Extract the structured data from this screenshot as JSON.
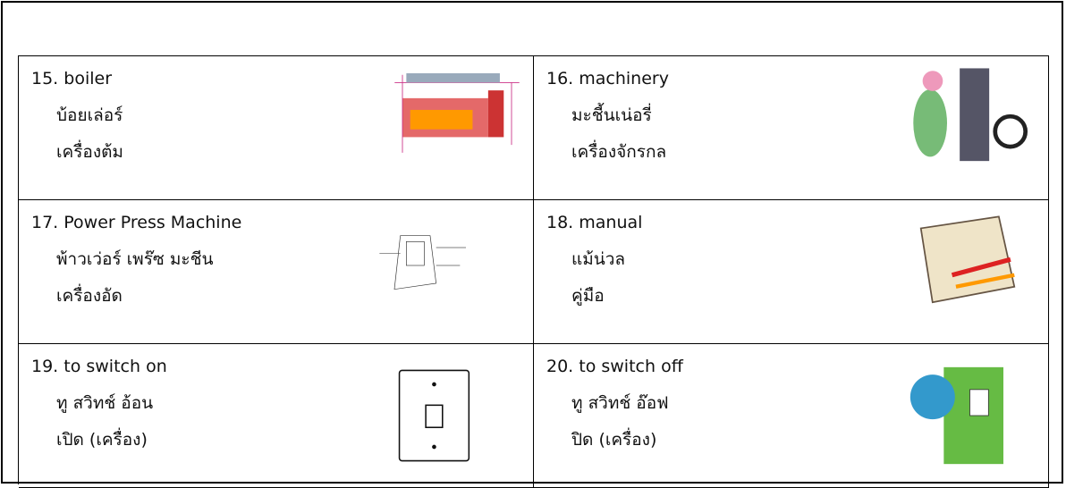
{
  "table": {
    "rows": [
      [
        {
          "term": "15. boiler",
          "reading": "บ้อยเล่อร์",
          "meaning": "เครื่องต้ม"
        },
        {
          "term": "16. machinery",
          "reading": "มะชี้นเน่อรี่",
          "meaning": "เครื่องจักรกล"
        }
      ],
      [
        {
          "term": "17. Power Press Machine",
          "reading": "พ้าวเว่อร์ เพร๊ซ มะชีน",
          "meaning": "เครื่องอัด"
        },
        {
          "term": "18. manual",
          "reading": "แม้น่วล",
          "meaning": "คู่มือ"
        }
      ],
      [
        {
          "term": "19. to switch on",
          "reading": "ทู สวิทช์ อ้อน",
          "meaning": "เปิด (เครื่อง)"
        },
        {
          "term": "20. to switch off",
          "reading": "ทู สวิทช์ อ๊อฟ",
          "meaning": "ปิด (เครื่อง)"
        }
      ]
    ]
  }
}
